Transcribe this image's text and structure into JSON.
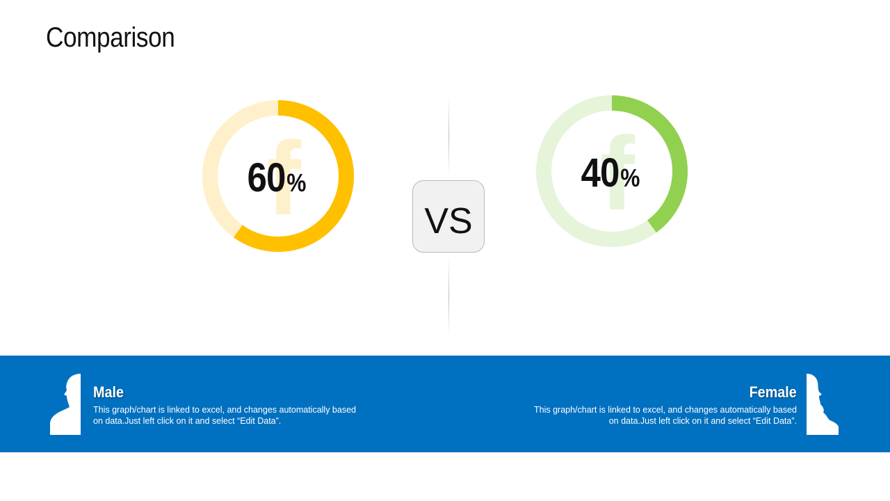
{
  "title": "Comparison",
  "vs_label": "VS",
  "colors": {
    "male_accent": "#ffc000",
    "male_track": "#fff0cc",
    "female_accent": "#92d050",
    "female_track": "#e6f4d9",
    "band": "#0070c0"
  },
  "icons": {
    "donut_watermark": "facebook-f-icon",
    "male": "male-silhouette-icon",
    "female": "female-silhouette-icon"
  },
  "chart_data": [
    {
      "type": "pie",
      "series": [
        {
          "values": [
            60,
            40
          ]
        }
      ],
      "value_label": "60",
      "unit": "%"
    },
    {
      "type": "pie",
      "series": [
        {
          "values": [
            40,
            60
          ]
        }
      ],
      "value_label": "40",
      "unit": "%"
    }
  ],
  "male": {
    "label": "Male",
    "description": "This graph/chart is linked to excel, and changes automatically based on data.Just left click on it and select “Edit Data”."
  },
  "female": {
    "label": "Female",
    "description": "This graph/chart is linked to excel, and changes automatically based on data.Just left click on it and select “Edit Data”."
  }
}
